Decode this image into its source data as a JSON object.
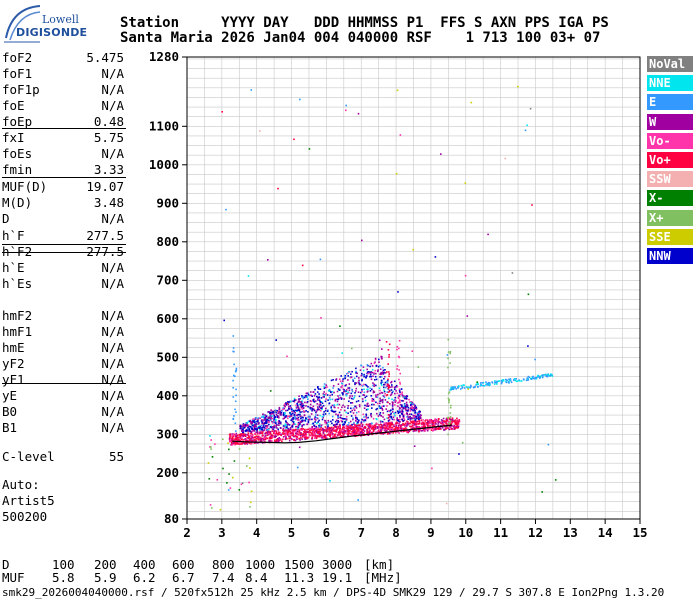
{
  "logo": {
    "top": "Lowell",
    "bottom": "DIGISONDE"
  },
  "header": {
    "line1": "Station     YYYY DAY   DDD HHMMSS P1  FFS S AXN PPS IGA PS",
    "line2": "Santa Maria 2026 Jan04 004 040000 RSF    1 713 100 03+ 07"
  },
  "params": [
    {
      "label": "foF2",
      "value": "5.475"
    },
    {
      "label": "foF1",
      "value": "N/A"
    },
    {
      "label": "foF1p",
      "value": "N/A"
    },
    {
      "label": "foE",
      "value": "N/A"
    },
    {
      "label": "foEp",
      "value": "0.48"
    },
    {
      "label": "fxI",
      "value": "5.75"
    },
    {
      "label": "foEs",
      "value": "N/A"
    },
    {
      "label": "fmin",
      "value": "3.33"
    },
    {
      "label": "MUF(D)",
      "value": "19.07"
    },
    {
      "label": "M(D)",
      "value": "3.48"
    },
    {
      "label": "D",
      "value": "N/A"
    },
    {
      "label": "h`F",
      "value": "277.5"
    },
    {
      "label": "h`F2",
      "value": "277.5"
    },
    {
      "label": "h`E",
      "value": "N/A"
    },
    {
      "label": "h`Es",
      "value": "N/A"
    },
    {
      "label": "hmF2",
      "value": "N/A"
    },
    {
      "label": "hmF1",
      "value": "N/A"
    },
    {
      "label": "hmE",
      "value": "N/A"
    },
    {
      "label": "yF2",
      "value": "N/A"
    },
    {
      "label": "yF1",
      "value": "N/A"
    },
    {
      "label": "yE",
      "value": "N/A"
    },
    {
      "label": "B0",
      "value": "N/A"
    },
    {
      "label": "B1",
      "value": "N/A"
    },
    {
      "label": "C-level",
      "value": "55"
    }
  ],
  "auto": {
    "label": "Auto:",
    "artist": "Artist5",
    "version": "500200"
  },
  "legend": [
    {
      "label": "NoVal",
      "color": "#808080"
    },
    {
      "label": "NNE",
      "color": "#00e5ee"
    },
    {
      "label": "E",
      "color": "#3399ff"
    },
    {
      "label": "W",
      "color": "#a000a0"
    },
    {
      "label": "Vo-",
      "color": "#ff33aa"
    },
    {
      "label": "Vo+",
      "color": "#ff0040"
    },
    {
      "label": "SSW",
      "color": "#f4b0b0"
    },
    {
      "label": "X-",
      "color": "#008000"
    },
    {
      "label": "X+",
      "color": "#80c060"
    },
    {
      "label": "SSE",
      "color": "#cccc00"
    },
    {
      "label": "NNW",
      "color": "#0000cc"
    }
  ],
  "chart_data": {
    "type": "scatter",
    "xlim": [
      2,
      15
    ],
    "ylim": [
      80,
      1280
    ],
    "x_ticks": [
      "2",
      "3",
      "4",
      "5",
      "6",
      "7",
      "8",
      "9",
      "10",
      "11",
      "12",
      "13",
      "14",
      "15"
    ],
    "y_ticks": [
      "80",
      "200",
      "300",
      "400",
      "500",
      "600",
      "700",
      "800",
      "900",
      "1000",
      "1100",
      "1280"
    ],
    "grid": true,
    "trace": {
      "x": [
        3.3,
        3.8,
        4.3,
        4.8,
        5.2,
        5.7,
        6.2,
        6.8,
        7.5,
        8.2,
        9.0,
        9.6
      ],
      "y": [
        282,
        280,
        279,
        278,
        279,
        283,
        289,
        296,
        303,
        310,
        318,
        324
      ]
    }
  },
  "footer": {
    "d_label": "D",
    "d_values": [
      "100",
      "200",
      "400",
      "600",
      "800",
      "1000",
      "1500",
      "3000"
    ],
    "d_unit": "[km]",
    "muf_label": "MUF",
    "muf_values": [
      "5.8",
      "5.9",
      "6.2",
      "6.7",
      "7.4",
      "8.4",
      "11.3",
      "19.1"
    ],
    "muf_unit": "[MHz]",
    "info": "smk29_2026004040000.rsf / 520fx512h 25 kHz 2.5 km / DPS-4D SMK29 129 / 29.7 S 307.8 E",
    "version": "Ion2Png 1.3.20"
  }
}
